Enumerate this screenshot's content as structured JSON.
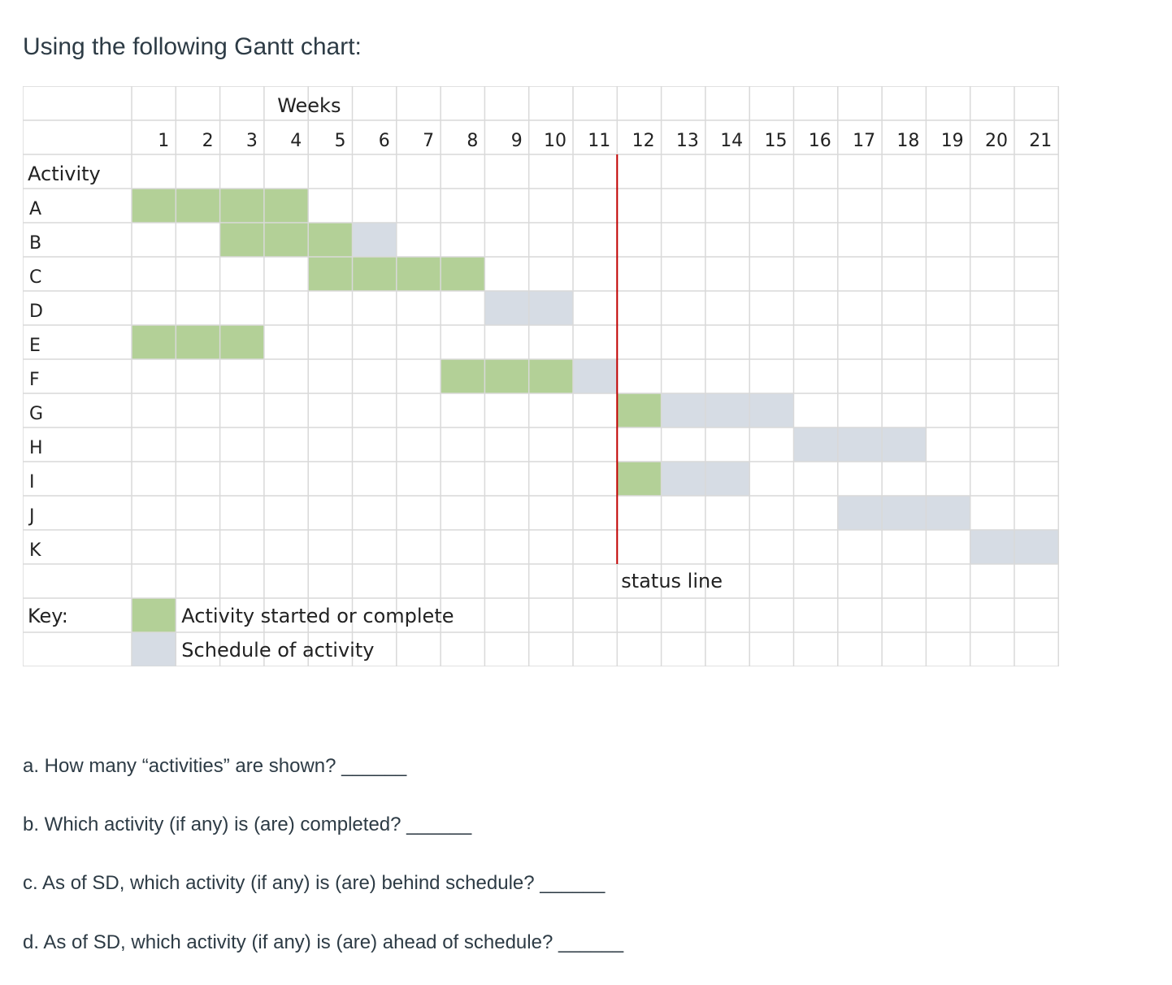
{
  "intro": "Using the following Gantt chart:",
  "chart_data": {
    "type": "gantt",
    "header_label": "Weeks",
    "weeks": [
      1,
      2,
      3,
      4,
      5,
      6,
      7,
      8,
      9,
      10,
      11,
      12,
      13,
      14,
      15,
      16,
      17,
      18,
      19,
      20,
      21
    ],
    "activity_header": "Activity",
    "activities": [
      "A",
      "B",
      "C",
      "D",
      "E",
      "F",
      "G",
      "H",
      "I",
      "J",
      "K"
    ],
    "started_segments": [
      {
        "activity": "A",
        "start_week": 1,
        "end_week": 4
      },
      {
        "activity": "B",
        "start_week": 3,
        "end_week": 5
      },
      {
        "activity": "C",
        "start_week": 5,
        "end_week": 8
      },
      {
        "activity": "E",
        "start_week": 1,
        "end_week": 3
      },
      {
        "activity": "F",
        "start_week": 8,
        "end_week": 10
      },
      {
        "activity": "G",
        "start_week": 12,
        "end_week": 12
      },
      {
        "activity": "I",
        "start_week": 12,
        "end_week": 12
      }
    ],
    "scheduled_segments": [
      {
        "activity": "B",
        "start_week": 6,
        "end_week": 6
      },
      {
        "activity": "D",
        "start_week": 9,
        "end_week": 10
      },
      {
        "activity": "F",
        "start_week": 11,
        "end_week": 11
      },
      {
        "activity": "G",
        "start_week": 13,
        "end_week": 15
      },
      {
        "activity": "H",
        "start_week": 16,
        "end_week": 18
      },
      {
        "activity": "I",
        "start_week": 13,
        "end_week": 14
      },
      {
        "activity": "J",
        "start_week": 17,
        "end_week": 19
      },
      {
        "activity": "K",
        "start_week": 20,
        "end_week": 21
      }
    ],
    "status_line": {
      "after_week": 11,
      "label": "status line"
    },
    "key": {
      "title": "Key:",
      "started_label": "Activity started or complete",
      "scheduled_label": "Schedule of activity"
    },
    "colors": {
      "started": "#b3d097",
      "scheduled": "#d6dce4",
      "status_line": "#c00000",
      "grid": "#d9d9d9"
    }
  },
  "questions": [
    "a. How many “activities” are shown? ______",
    "b. Which activity (if any) is (are) completed? ______",
    "c. As of SD, which activity (if any) is (are) behind schedule? ______",
    "d. As of SD, which activity (if any) is (are) ahead of schedule? ______"
  ]
}
